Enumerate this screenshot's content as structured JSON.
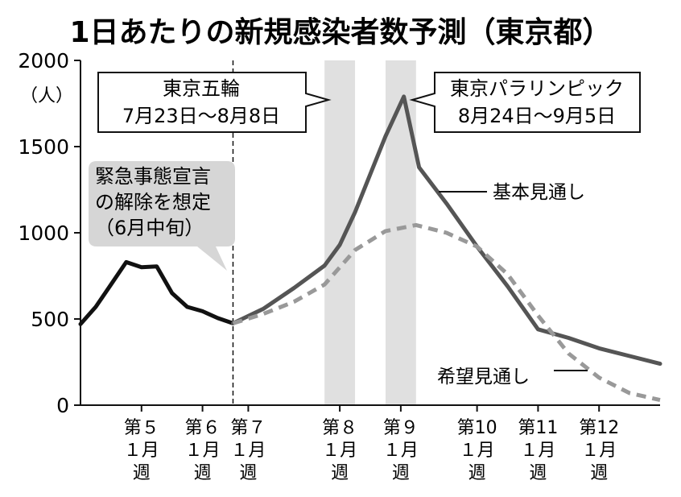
{
  "chart_data": {
    "type": "line",
    "title": "1日あたりの新規感染者数予測（東京都）",
    "ylabel": "（人）",
    "ylim": [
      0,
      2000
    ],
    "yticks": [
      0,
      500,
      1000,
      1500,
      2000
    ],
    "xlim": [
      0,
      19
    ],
    "grid": false,
    "x_categories": [
      {
        "x": 2,
        "lines": [
          "第５",
          "１月",
          "週"
        ]
      },
      {
        "x": 4,
        "lines": [
          "第６",
          "１月",
          "週"
        ]
      },
      {
        "x": 5.5,
        "lines": [
          "第７",
          "１月",
          "週"
        ]
      },
      {
        "x": 8.5,
        "lines": [
          "第８",
          "１月",
          "週"
        ]
      },
      {
        "x": 10.5,
        "lines": [
          "第９",
          "１月",
          "週"
        ]
      },
      {
        "x": 13,
        "lines": [
          "第10",
          "１月",
          "週"
        ]
      },
      {
        "x": 15,
        "lines": [
          "第11",
          "１月",
          "週"
        ]
      },
      {
        "x": 17,
        "lines": [
          "第12",
          "１月",
          "週"
        ]
      }
    ],
    "shaded_periods": [
      [
        8,
        9
      ],
      [
        10,
        11
      ]
    ],
    "divider_x": 5,
    "series": [
      {
        "name": "",
        "color": "#111111",
        "style": "solid",
        "points": [
          [
            0,
            470
          ],
          [
            0.5,
            570
          ],
          [
            1,
            700
          ],
          [
            1.5,
            830
          ],
          [
            2,
            800
          ],
          [
            2.5,
            805
          ],
          [
            3,
            650
          ],
          [
            3.5,
            570
          ],
          [
            4,
            545
          ],
          [
            4.5,
            505
          ],
          [
            5,
            475
          ]
        ]
      },
      {
        "name": "基本見通し",
        "color": "#555555",
        "style": "solid",
        "points": [
          [
            5,
            475
          ],
          [
            6,
            560
          ],
          [
            7,
            680
          ],
          [
            8,
            810
          ],
          [
            8.5,
            930
          ],
          [
            9,
            1120
          ],
          [
            9.5,
            1340
          ],
          [
            10,
            1560
          ],
          [
            10.6,
            1790
          ],
          [
            11.1,
            1380
          ],
          [
            12,
            1170
          ],
          [
            13,
            920
          ],
          [
            14,
            690
          ],
          [
            15,
            440
          ],
          [
            16,
            390
          ],
          [
            17,
            330
          ],
          [
            18,
            285
          ],
          [
            19,
            240
          ]
        ]
      },
      {
        "name": "希望見通し",
        "color": "#999999",
        "style": "dashed",
        "points": [
          [
            5,
            475
          ],
          [
            6,
            530
          ],
          [
            7,
            600
          ],
          [
            8,
            700
          ],
          [
            9,
            900
          ],
          [
            10,
            1010
          ],
          [
            11,
            1045
          ],
          [
            12,
            1000
          ],
          [
            13,
            920
          ],
          [
            14,
            760
          ],
          [
            15,
            520
          ],
          [
            16,
            300
          ],
          [
            17,
            160
          ],
          [
            18,
            70
          ],
          [
            19,
            30
          ]
        ]
      }
    ],
    "annotations": [
      {
        "id": "emergency",
        "lines": [
          "緊急事態宣言",
          "の解除を想定",
          "（6月中旬）"
        ],
        "style": "gray-bubble"
      },
      {
        "id": "olympics",
        "lines": [
          "東京五輪",
          "7月23日〜8月8日"
        ],
        "style": "box"
      },
      {
        "id": "paralympics",
        "lines": [
          "東京パラリンピック",
          "8月24日〜9月5日"
        ],
        "style": "box"
      }
    ]
  }
}
